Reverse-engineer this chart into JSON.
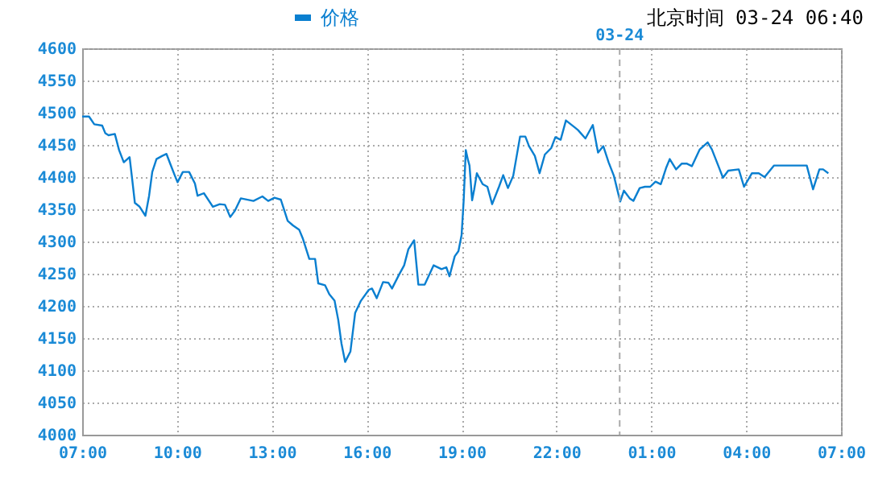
{
  "chart_data": {
    "type": "line",
    "annotations": [
      "北京时间 03-24 06:40"
    ],
    "legend": "top",
    "grid": true,
    "marker": "none",
    "line_style": "solid",
    "xlim": [
      "--03-23T07:00",
      "--03-24T07:00"
    ],
    "xticks": [
      {
        "value": "--03-23T07:00",
        "label": "07:00"
      },
      {
        "value": "--03-23T10:00",
        "label": "10:00"
      },
      {
        "value": "--03-23T13:00",
        "label": "13:00"
      },
      {
        "value": "--03-23T16:00",
        "label": "16:00"
      },
      {
        "value": "--03-23T19:00",
        "label": "19:00"
      },
      {
        "value": "--03-23T22:00",
        "label": "22:00"
      },
      {
        "value": "--03-24T01:00",
        "label": "01:00"
      },
      {
        "value": "--03-24T04:00",
        "label": "04:00"
      },
      {
        "value": "--03-24T07:00",
        "label": "07:00"
      }
    ],
    "ylim": [
      4000,
      4600
    ],
    "yticks": [
      4000,
      4050,
      4100,
      4150,
      4200,
      4250,
      4300,
      4350,
      4400,
      4450,
      4500,
      4550,
      4600
    ],
    "ref_lines": [
      {
        "axis": "x",
        "value": "--03-24T00:00",
        "label": "03-24",
        "color": "#aaaaaa",
        "line_style": "dashed"
      }
    ],
    "series": [
      {
        "name": "价格",
        "color": "#0a7fd0",
        "x": [
          "--03-23T07:00",
          "--03-23T07:13",
          "--03-23T07:23",
          "--03-23T07:38",
          "--03-23T07:44",
          "--03-23T07:50",
          "--03-23T08:02",
          "--03-23T08:10",
          "--03-23T08:19",
          "--03-23T08:30",
          "--03-23T08:35",
          "--03-23T08:40",
          "--03-23T08:49",
          "--03-23T09:00",
          "--03-23T09:07",
          "--03-23T09:13",
          "--03-23T09:21",
          "--03-23T09:32",
          "--03-23T09:40",
          "--03-23T09:47",
          "--03-23T09:56",
          "--03-23T10:01",
          "--03-23T10:11",
          "--03-23T10:23",
          "--03-23T10:34",
          "--03-23T10:39",
          "--03-23T10:51",
          "--03-23T11:08",
          "--03-23T11:21",
          "--03-23T11:31",
          "--03-23T11:41",
          "--03-23T11:50",
          "--03-23T12:01",
          "--03-23T12:25",
          "--03-23T12:42",
          "--03-23T12:53",
          "--03-23T13:05",
          "--03-23T13:17",
          "--03-23T13:30",
          "--03-23T13:40",
          "--03-23T13:52",
          "--03-23T13:59",
          "--03-23T14:11",
          "--03-23T14:22",
          "--03-23T14:28",
          "--03-23T14:41",
          "--03-23T14:49",
          "--03-23T14:59",
          "--03-23T15:06",
          "--03-23T15:12",
          "--03-23T15:19",
          "--03-23T15:29",
          "--03-23T15:38",
          "--03-23T15:49",
          "--03-23T16:04",
          "--03-23T16:10",
          "--03-23T16:19",
          "--03-23T16:31",
          "--03-23T16:41",
          "--03-23T16:48",
          "--03-23T17:01",
          "--03-23T17:11",
          "--03-23T17:19",
          "--03-23T17:30",
          "--03-23T17:38",
          "--03-23T17:50",
          "--03-23T18:07",
          "--03-23T18:22",
          "--03-23T18:31",
          "--03-23T18:37",
          "--03-23T18:47",
          "--03-23T18:54",
          "--03-23T19:00",
          "--03-23T19:04",
          "--03-23T19:08",
          "--03-23T19:12",
          "--03-23T19:15",
          "--03-23T19:20",
          "--03-23T19:24",
          "--03-23T19:29",
          "--03-23T19:40",
          "--03-23T19:49",
          "--03-23T19:58",
          "--03-23T20:11",
          "--03-23T20:19",
          "--03-23T20:28",
          "--03-23T20:38",
          "--03-23T20:51",
          "--03-23T21:01",
          "--03-23T21:08",
          "--03-23T21:19",
          "--03-23T21:28",
          "--03-23T21:38",
          "--03-23T21:50",
          "--03-23T21:58",
          "--03-23T22:08",
          "--03-23T22:18",
          "--03-23T22:35",
          "--03-23T22:41",
          "--03-23T22:55",
          "--03-23T23:09",
          "--03-23T23:19",
          "--03-23T23:29",
          "--03-23T23:39",
          "--03-23T23:49",
          "--03-24T00:01",
          "--03-24T00:08",
          "--03-24T00:19",
          "--03-24T00:26",
          "--03-24T00:38",
          "--03-24T00:48",
          "--03-24T00:58",
          "--03-24T01:08",
          "--03-24T01:18",
          "--03-24T01:28",
          "--03-24T01:35",
          "--03-24T01:47",
          "--03-24T01:58",
          "--03-24T02:07",
          "--03-24T02:17",
          "--03-24T02:32",
          "--03-24T02:47",
          "--03-24T02:55",
          "--03-24T03:07",
          "--03-24T03:16",
          "--03-24T03:26",
          "--03-24T03:46",
          "--03-24T03:56",
          "--03-24T04:11",
          "--03-24T04:24",
          "--03-24T04:35",
          "--03-24T04:53",
          "--03-24T05:55",
          "--03-24T06:07",
          "--03-24T06:19",
          "--03-24T06:26",
          "--03-24T06:36"
        ],
        "values": [
          4494,
          4494,
          4482,
          4480,
          4468,
          4465,
          4467,
          4442,
          4423,
          4431,
          4396,
          4360,
          4354,
          4340,
          4371,
          4408,
          4428,
          4433,
          4436,
          4421,
          4402,
          4392,
          4408,
          4408,
          4390,
          4371,
          4375,
          4354,
          4358,
          4357,
          4338,
          4348,
          4367,
          4363,
          4370,
          4363,
          4368,
          4365,
          4332,
          4325,
          4318,
          4304,
          4273,
          4273,
          4235,
          4232,
          4218,
          4208,
          4178,
          4142,
          4113,
          4129,
          4189,
          4208,
          4225,
          4227,
          4212,
          4237,
          4236,
          4227,
          4248,
          4263,
          4288,
          4302,
          4233,
          4233,
          4263,
          4257,
          4260,
          4246,
          4277,
          4285,
          4310,
          4364,
          4442,
          4427,
          4418,
          4364,
          4381,
          4406,
          4389,
          4385,
          4358,
          4385,
          4403,
          4383,
          4402,
          4463,
          4463,
          4448,
          4433,
          4406,
          4435,
          4445,
          4462,
          4458,
          4488,
          4477,
          4473,
          4460,
          4481,
          4438,
          4448,
          4423,
          4402,
          4362,
          4379,
          4367,
          4363,
          4383,
          4385,
          4385,
          4393,
          4389,
          4414,
          4428,
          4412,
          4421,
          4421,
          4417,
          4443,
          4454,
          4443,
          4418,
          4399,
          4410,
          4412,
          4385,
          4406,
          4406,
          4400,
          4418,
          4418,
          4381,
          4412,
          4412,
          4406
        ]
      }
    ]
  }
}
